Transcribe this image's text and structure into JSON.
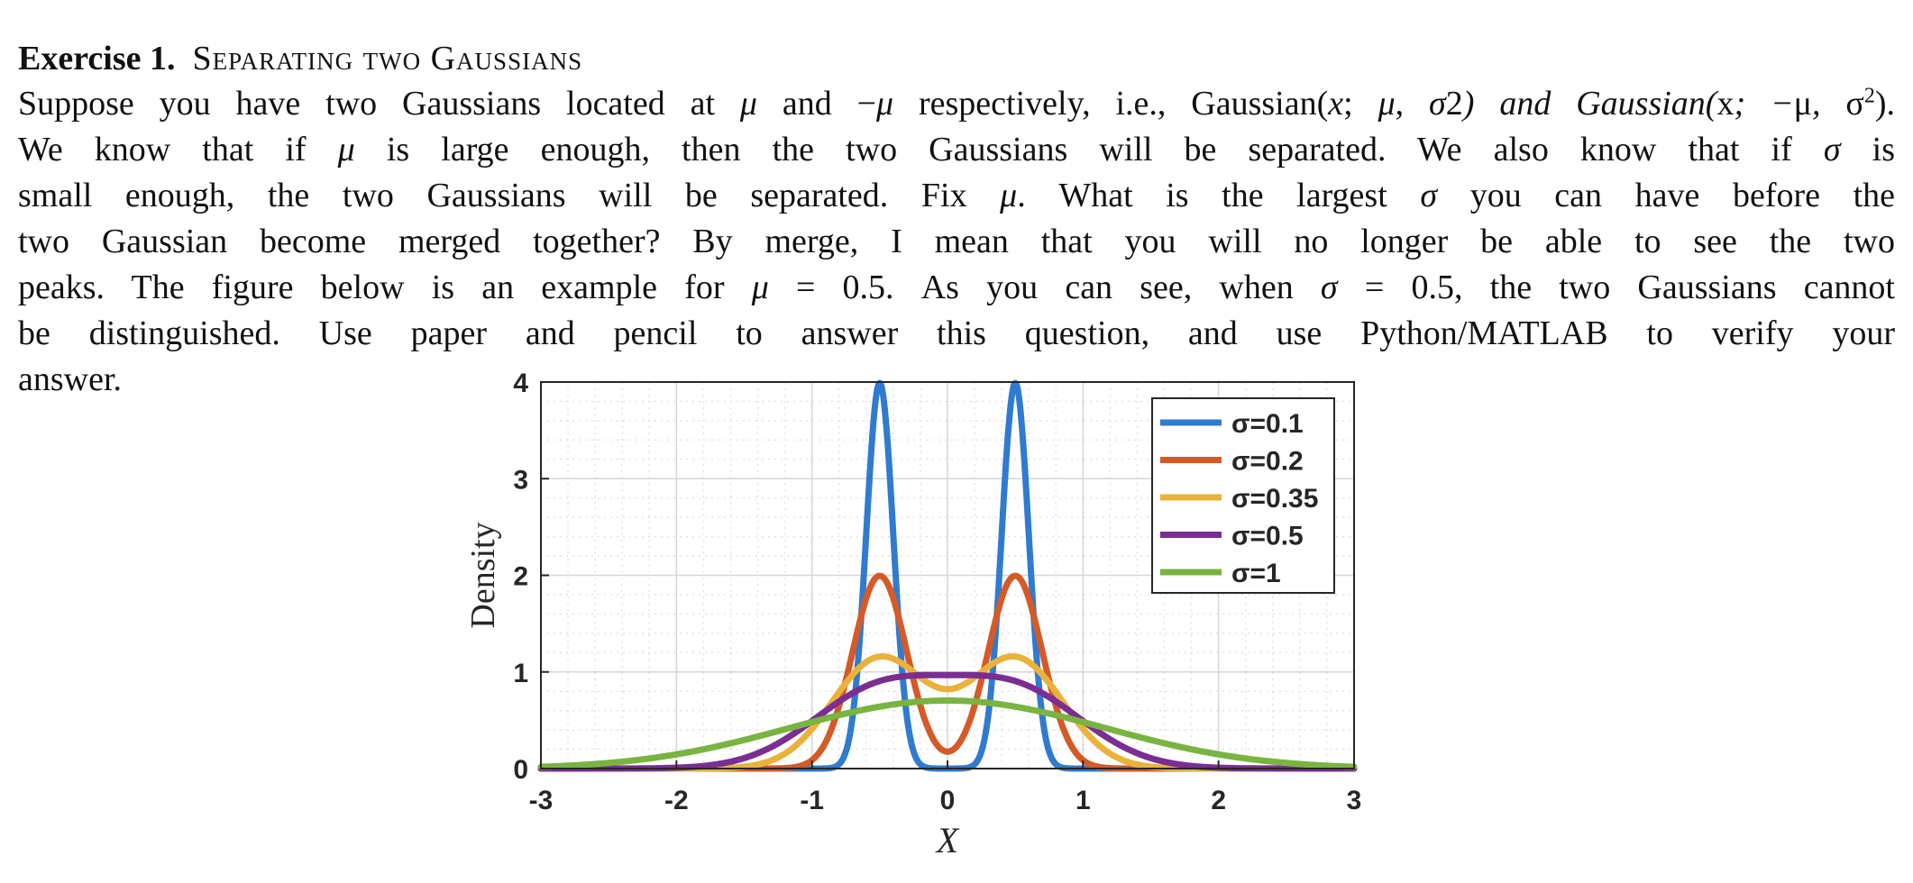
{
  "heading": {
    "exercise_label": "Exercise 1.",
    "title": "Separating two Gaussians"
  },
  "paragraph": {
    "lines": [
      [
        "Suppose you have two Gaussians located at ",
        "μ",
        " and −",
        "μ",
        " respectively, i.e., Gaussian(",
        "x",
        "; ",
        "μ",
        ", ",
        "σ",
        "2",
        ") and Gaussian(",
        "x",
        "; −",
        "μ",
        ", ",
        "σ",
        "2",
        ")."
      ],
      [
        "We know that if ",
        "μ",
        " is large enough, then the two Gaussians will be separated.  We also know that if ",
        "σ",
        " is"
      ],
      [
        "small enough, the two Gaussians will be separated.  Fix ",
        "μ",
        ".  What is the largest ",
        "σ",
        " you can have before the"
      ],
      [
        "two Gaussian become merged together?  By merge, I mean that you will no longer be able to see the two"
      ],
      [
        "peaks.  The figure below is an example for ",
        "μ",
        " = 0.5.  As you can see, when ",
        "σ",
        " = 0.5, the two Gaussians cannot"
      ],
      [
        "be distinguished.  Use paper and pencil to answer this question, and use Python/MATLAB to verify your"
      ],
      [
        "answer."
      ]
    ]
  },
  "chart_data": {
    "type": "line",
    "mu": 0.5,
    "xlabel": "X",
    "ylabel": "Density",
    "xlim": [
      -3,
      3
    ],
    "ylim": [
      0,
      4
    ],
    "x_ticks": [
      "-3",
      "-2",
      "-1",
      "0",
      "1",
      "2",
      "3"
    ],
    "y_ticks": [
      "0",
      "1",
      "2",
      "3",
      "4"
    ],
    "grid": true,
    "minor_grid": true,
    "legend_position": "top-right",
    "series": [
      {
        "name": "σ=0.1",
        "sigma": 0.1,
        "color": "#2f7bd0",
        "peak_y": 3.99
      },
      {
        "name": "σ=0.2",
        "sigma": 0.2,
        "color": "#d45a27",
        "peak_y": 1.99
      },
      {
        "name": "σ=0.35",
        "sigma": 0.35,
        "color": "#eab23a",
        "peak_y": 1.13
      },
      {
        "name": "σ=0.5",
        "sigma": 0.5,
        "color": "#7a2e92",
        "peak_y": 0.97
      },
      {
        "name": "σ=1",
        "sigma": 1.0,
        "color": "#79b441",
        "peak_y": 0.7
      }
    ]
  }
}
